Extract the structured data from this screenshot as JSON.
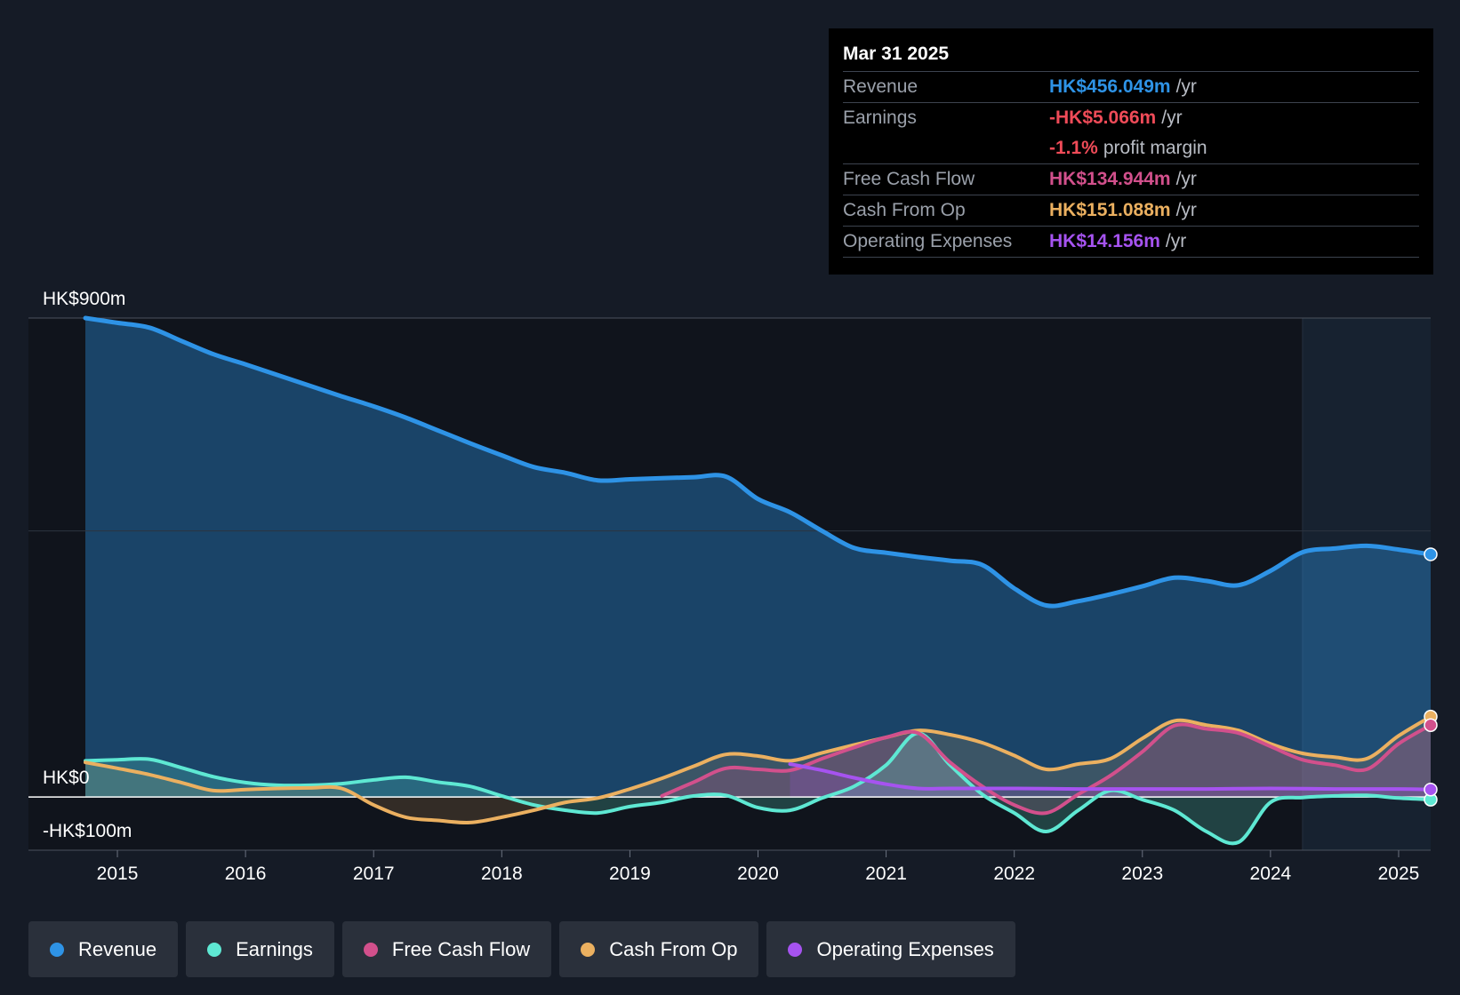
{
  "tooltip": {
    "date": "Mar 31 2025",
    "rows": [
      {
        "label": "Revenue",
        "value": "HK$456.049m",
        "unit": "/yr",
        "color": "#2e93e6"
      },
      {
        "label": "Earnings",
        "value": "-HK$5.066m",
        "unit": "/yr",
        "color": "#ef4b58"
      },
      {
        "label": "",
        "value": "-1.1%",
        "unit": "profit margin",
        "color": "#ef4b58"
      },
      {
        "label": "Free Cash Flow",
        "value": "HK$134.944m",
        "unit": "/yr",
        "color": "#d2508c"
      },
      {
        "label": "Cash From Op",
        "value": "HK$151.088m",
        "unit": "/yr",
        "color": "#ebb060"
      },
      {
        "label": "Operating Expenses",
        "value": "HK$14.156m",
        "unit": "/yr",
        "color": "#a653f0"
      }
    ]
  },
  "legend": [
    {
      "label": "Revenue",
      "color": "#2e93e6"
    },
    {
      "label": "Earnings",
      "color": "#5ee8d3"
    },
    {
      "label": "Free Cash Flow",
      "color": "#d2508c"
    },
    {
      "label": "Cash From Op",
      "color": "#ebb060"
    },
    {
      "label": "Operating Expenses",
      "color": "#a653f0"
    }
  ],
  "chart_data": {
    "type": "line",
    "y_tick_labels": [
      "HK$900m",
      "HK$0",
      "-HK$100m"
    ],
    "ylim": [
      -100,
      900
    ],
    "xlim": [
      2014.75,
      2025.25
    ],
    "x_ticks": [
      2015,
      2016,
      2017,
      2018,
      2019,
      2020,
      2021,
      2022,
      2023,
      2024,
      2025
    ],
    "x_tick_labels": [
      "2015",
      "2016",
      "2017",
      "2018",
      "2019",
      "2020",
      "2021",
      "2022",
      "2023",
      "2024",
      "2025"
    ],
    "grid": "horizontal",
    "highlight_start": 2024.25,
    "series": [
      {
        "name": "Revenue",
        "color": "#2e93e6",
        "fill": true,
        "x": [
          2014.75,
          2015.0,
          2015.25,
          2015.5,
          2015.75,
          2016.0,
          2016.25,
          2016.5,
          2016.75,
          2017.0,
          2017.25,
          2017.5,
          2017.75,
          2018.0,
          2018.25,
          2018.5,
          2018.75,
          2019.0,
          2019.25,
          2019.5,
          2019.75,
          2020.0,
          2020.25,
          2020.5,
          2020.75,
          2021.0,
          2021.25,
          2021.5,
          2021.75,
          2022.0,
          2022.25,
          2022.5,
          2022.75,
          2023.0,
          2023.25,
          2023.5,
          2023.75,
          2024.0,
          2024.25,
          2024.5,
          2024.75,
          2025.0,
          2025.25
        ],
        "y": [
          900,
          891,
          882,
          857,
          832,
          813,
          793,
          773,
          753,
          734,
          713,
          689,
          665,
          642,
          620,
          609,
          595,
          597,
          599,
          601,
          602,
          560,
          535,
          500,
          468,
          459,
          451,
          444,
          436,
          392,
          360,
          368,
          381,
          396,
          412,
          406,
          398,
          425,
          460,
          467,
          472,
          465,
          456
        ]
      },
      {
        "name": "Earnings",
        "color": "#5ee8d3",
        "fill": true,
        "x": [
          2014.75,
          2015.0,
          2015.25,
          2015.5,
          2015.75,
          2016.0,
          2016.25,
          2016.5,
          2016.75,
          2017.0,
          2017.25,
          2017.5,
          2017.75,
          2018.0,
          2018.25,
          2018.5,
          2018.75,
          2019.0,
          2019.25,
          2019.5,
          2019.75,
          2020.0,
          2020.25,
          2020.5,
          2020.75,
          2021.0,
          2021.25,
          2021.5,
          2021.75,
          2022.0,
          2022.25,
          2022.5,
          2022.75,
          2023.0,
          2023.25,
          2023.5,
          2023.75,
          2024.0,
          2024.25,
          2024.5,
          2024.75,
          2025.0,
          2025.25
        ],
        "y": [
          68,
          70,
          71,
          55,
          38,
          27,
          22,
          22,
          25,
          32,
          37,
          28,
          20,
          2,
          -15,
          -25,
          -30,
          -18,
          -10,
          2,
          3,
          -20,
          -25,
          -2,
          20,
          60,
          120,
          60,
          5,
          -30,
          -65,
          -25,
          12,
          -5,
          -25,
          -65,
          -85,
          -10,
          -1,
          2,
          3,
          -2,
          -5
        ]
      },
      {
        "name": "Free Cash Flow",
        "color": "#d2508c",
        "fill": true,
        "x": [
          2019.25,
          2019.5,
          2019.75,
          2020.0,
          2020.25,
          2020.5,
          2020.75,
          2021.0,
          2021.25,
          2021.5,
          2021.75,
          2022.0,
          2022.25,
          2022.5,
          2022.75,
          2023.0,
          2023.25,
          2023.5,
          2023.75,
          2024.0,
          2024.25,
          2024.5,
          2024.75,
          2025.0,
          2025.25
        ],
        "y": [
          2,
          28,
          54,
          52,
          50,
          72,
          93,
          112,
          120,
          65,
          20,
          -15,
          -30,
          5,
          40,
          85,
          134,
          128,
          120,
          95,
          70,
          60,
          52,
          100,
          135
        ]
      },
      {
        "name": "Cash From Op",
        "color": "#ebb060",
        "fill": true,
        "x": [
          2014.75,
          2015.0,
          2015.25,
          2015.5,
          2015.75,
          2016.0,
          2016.25,
          2016.5,
          2016.75,
          2017.0,
          2017.25,
          2017.5,
          2017.75,
          2018.0,
          2018.25,
          2018.5,
          2018.75,
          2019.0,
          2019.25,
          2019.5,
          2019.75,
          2020.0,
          2020.25,
          2020.5,
          2020.75,
          2021.0,
          2021.25,
          2021.5,
          2021.75,
          2022.0,
          2022.25,
          2022.5,
          2022.75,
          2023.0,
          2023.25,
          2023.5,
          2023.75,
          2024.0,
          2024.25,
          2024.5,
          2024.75,
          2025.0,
          2025.25
        ],
        "y": [
          65,
          54,
          42,
          27,
          12,
          14,
          16,
          17,
          16,
          -15,
          -38,
          -44,
          -48,
          -38,
          -25,
          -10,
          -2,
          15,
          35,
          58,
          80,
          77,
          68,
          83,
          98,
          112,
          125,
          117,
          102,
          78,
          52,
          62,
          72,
          110,
          143,
          135,
          125,
          100,
          82,
          75,
          72,
          115,
          151
        ]
      },
      {
        "name": "Operating Expenses",
        "color": "#a653f0",
        "fill": true,
        "x": [
          2020.25,
          2020.5,
          2020.75,
          2021.0,
          2021.25,
          2021.5,
          2022.0,
          2022.5,
          2023.0,
          2023.5,
          2024.0,
          2024.5,
          2025.0,
          2025.25
        ],
        "y": [
          62,
          50,
          36,
          24,
          16,
          16,
          16,
          15,
          15,
          15,
          16,
          15,
          15,
          14
        ]
      }
    ]
  }
}
